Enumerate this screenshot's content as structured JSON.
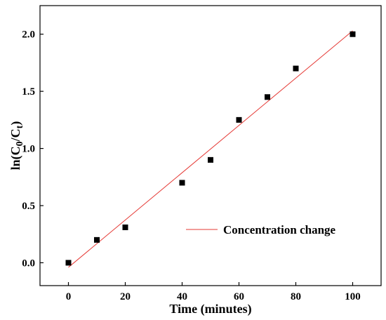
{
  "chart_data": {
    "type": "scatter",
    "xlabel": "Time (minutes)",
    "ylabel_parts": [
      "ln(C",
      "0",
      "/C",
      "t",
      ")"
    ],
    "xlim": [
      -10,
      110
    ],
    "ylim": [
      -0.2,
      2.25
    ],
    "xticks": [
      0,
      20,
      40,
      60,
      80,
      100
    ],
    "xtick_labels": [
      "0",
      "20",
      "40",
      "60",
      "80",
      "100"
    ],
    "yticks": [
      0.0,
      0.5,
      1.0,
      1.5,
      2.0
    ],
    "ytick_labels": [
      "0.0",
      "0.5",
      "1.0",
      "1.5",
      "2.0"
    ],
    "series": [
      {
        "marker": "square",
        "color": "#000000",
        "x": [
          0,
          10,
          20,
          40,
          50,
          60,
          70,
          80,
          100
        ],
        "y": [
          0.0,
          0.2,
          0.31,
          0.7,
          0.9,
          1.25,
          1.45,
          1.7,
          2.0
        ]
      }
    ],
    "fit_line": {
      "name": "Concentration change",
      "color": "#e53935",
      "x": [
        0,
        100
      ],
      "y": [
        -0.04,
        2.03
      ]
    },
    "legend_position": "lower-right",
    "grid": false
  }
}
